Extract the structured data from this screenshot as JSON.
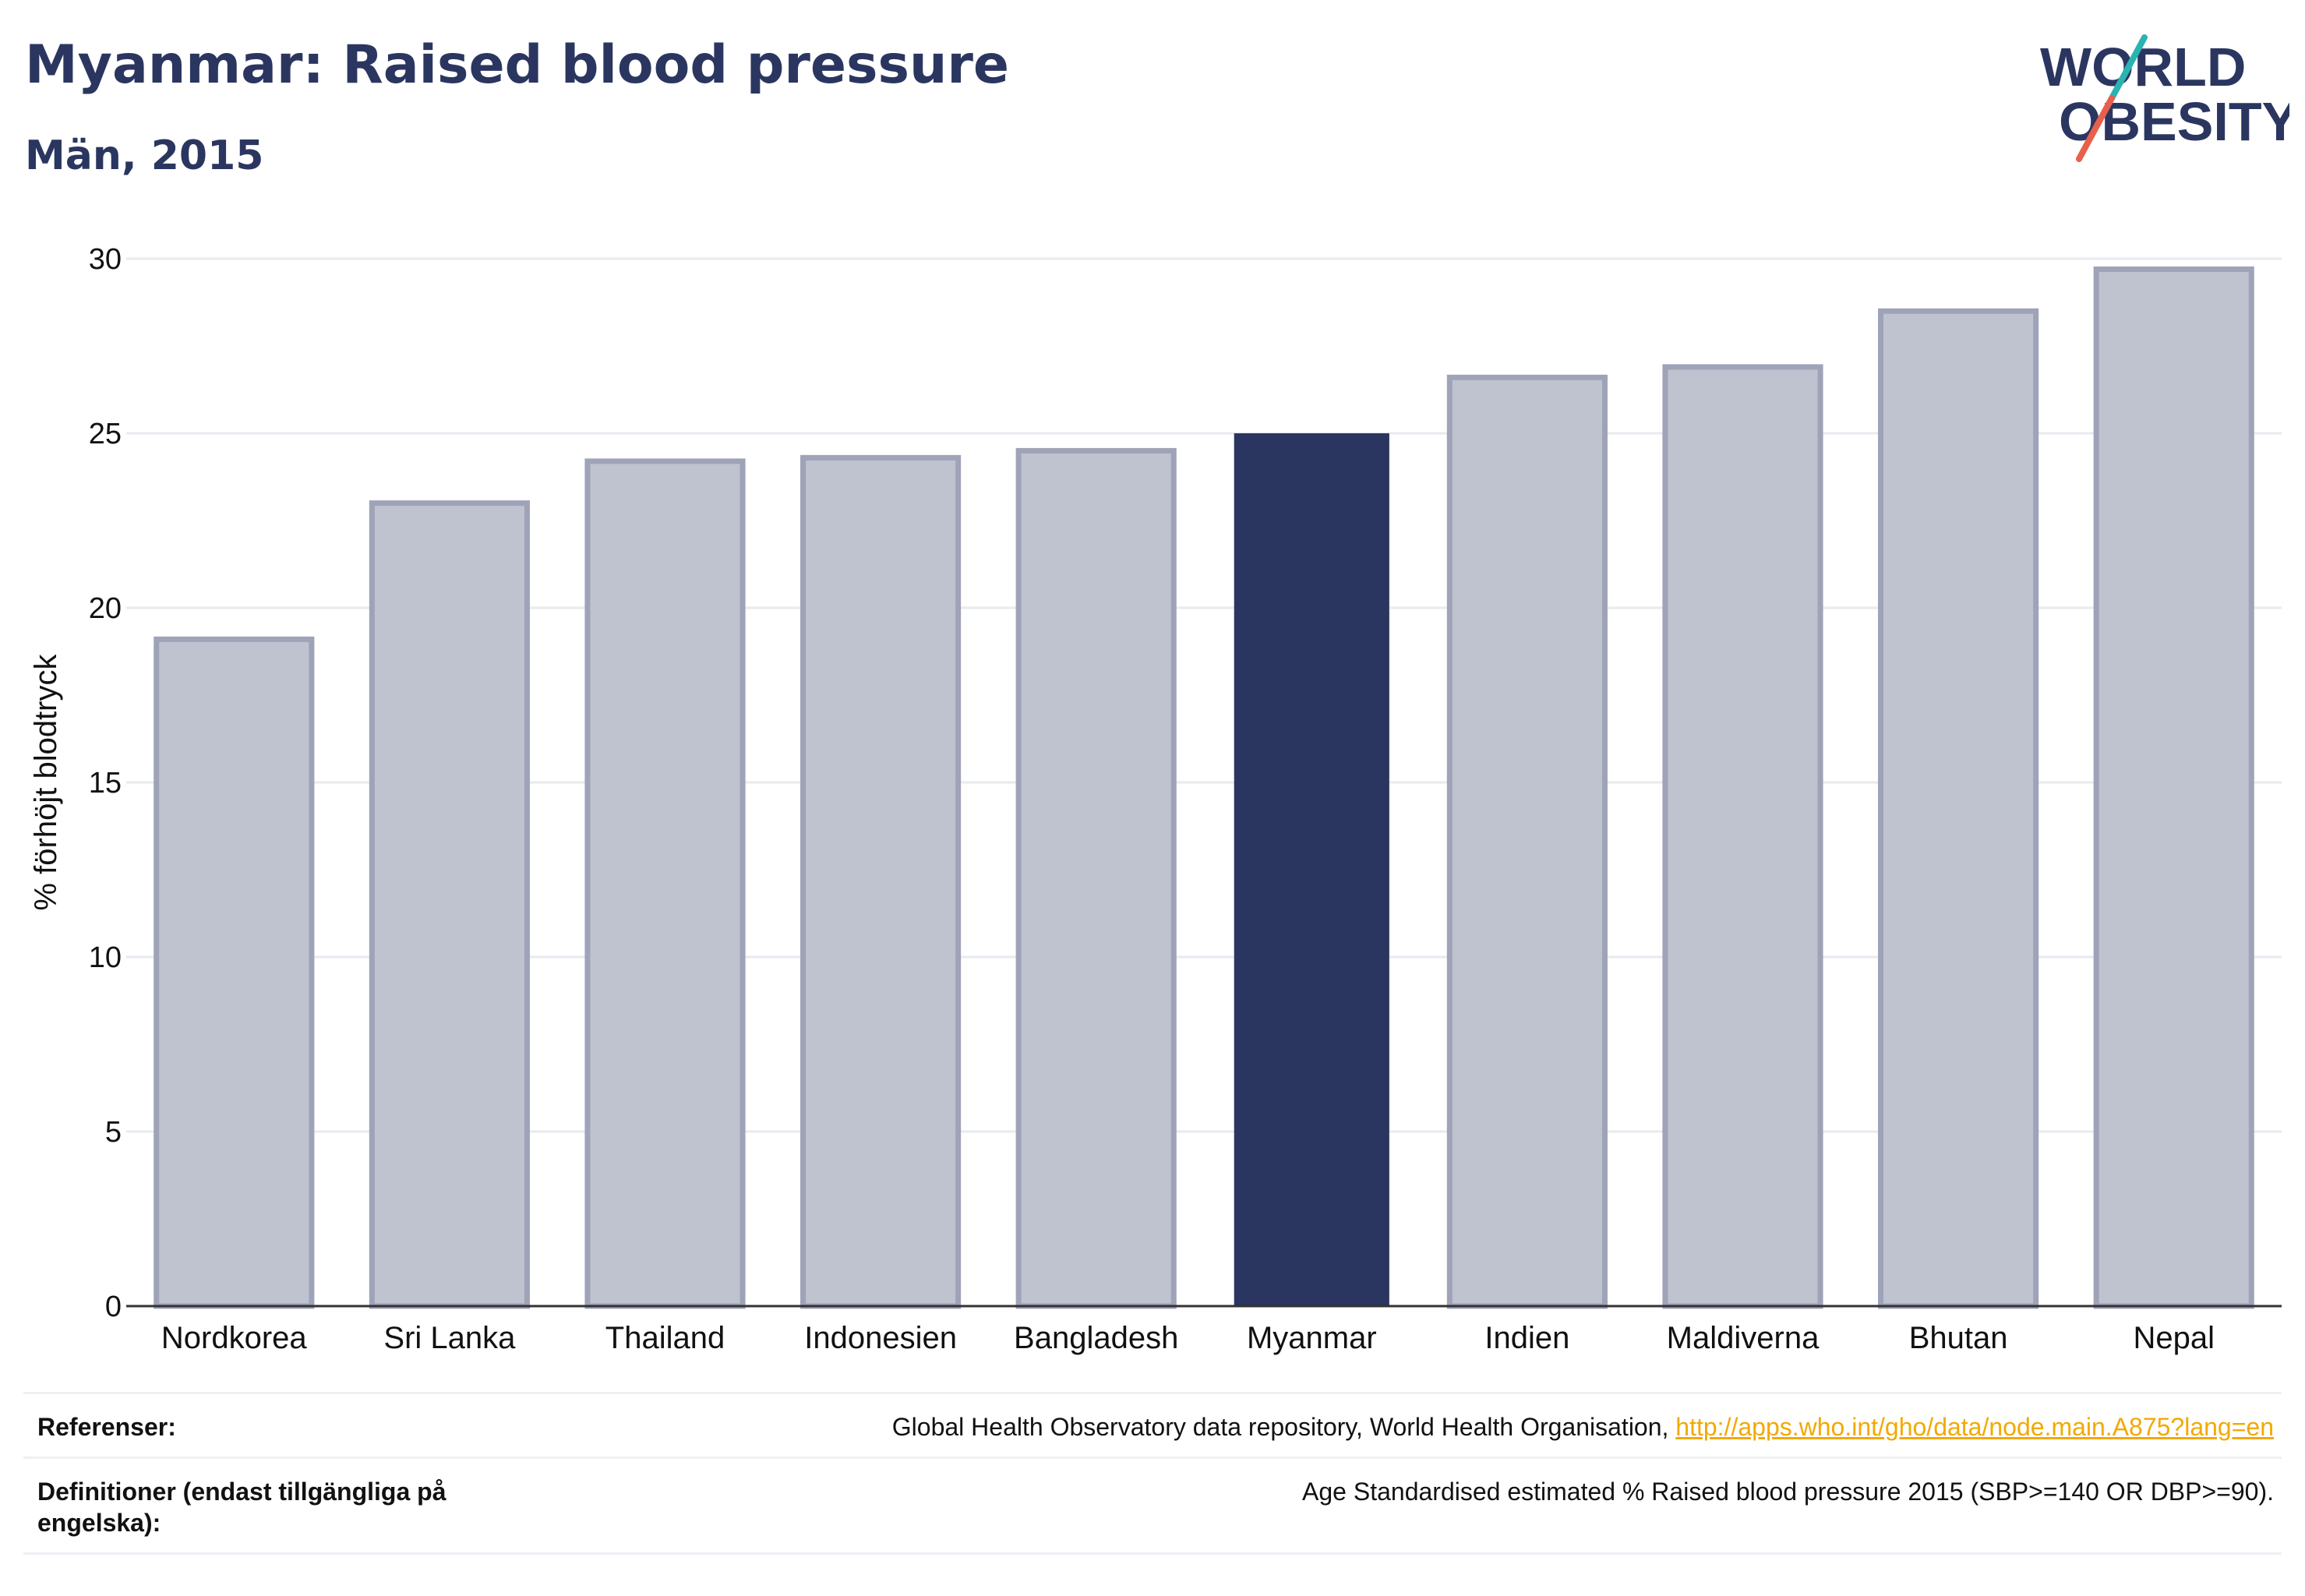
{
  "header": {
    "title": "Myanmar: Raised blood pressure",
    "subtitle": "Män, 2015"
  },
  "logo": {
    "line1": "WORLD",
    "line2": "OBESITY",
    "accent_teal": "#2bb3b1",
    "accent_red": "#e8604c"
  },
  "colors": {
    "highlight": "#2b3660",
    "bar_fill": "#bfc2cf",
    "bar_stroke": "#9ea3b8",
    "grid": "#e8eaf0"
  },
  "chart_data": {
    "type": "bar",
    "categories": [
      "Nordkorea",
      "Sri Lanka",
      "Thailand",
      "Indonesien",
      "Bangladesh",
      "Myanmar",
      "Indien",
      "Maldiverna",
      "Bhutan",
      "Nepal"
    ],
    "values": [
      19.1,
      23.0,
      24.2,
      24.3,
      24.5,
      25.0,
      26.6,
      26.9,
      28.5,
      29.7
    ],
    "highlight": "Myanmar",
    "ylabel": "% förhöjt blodtryck",
    "xlabel": "",
    "ylim": [
      0,
      30
    ],
    "yticks": [
      0,
      5,
      10,
      15,
      20,
      25,
      30
    ],
    "grid": true
  },
  "footer": {
    "references_label": "Referenser:",
    "references_text": "Global Health Observatory data repository, World Health Organisation, ",
    "references_link": "http://apps.who.int/gho/data/node.main.A875?lang=en",
    "definitions_label": "Definitioner (endast tillgängliga på engelska):",
    "definitions_text": "Age Standardised estimated % Raised blood pressure 2015 (SBP>=140 OR DBP>=90)."
  }
}
